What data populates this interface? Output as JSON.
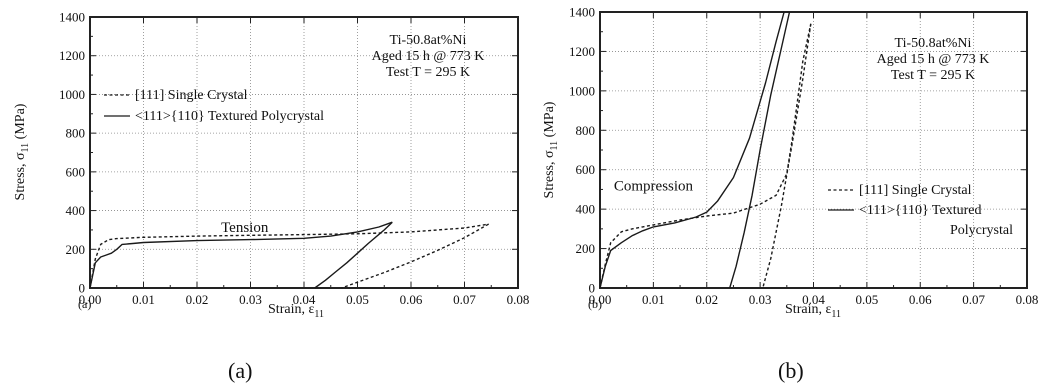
{
  "chart_data": [
    {
      "type": "line",
      "panel_tag": "(a)",
      "caption": "(a)",
      "xlabel_main": "Strain, ε",
      "xlabel_sub": "11",
      "ylabel_main": "Stress, σ",
      "ylabel_sub": "11",
      "ylabel_unit": " (MPa)",
      "xlim": [
        0,
        0.08
      ],
      "ylim": [
        0,
        1400
      ],
      "xticks": [
        "0.00",
        "0.01",
        "0.02",
        "0.03",
        "0.04",
        "0.05",
        "0.06",
        "0.07",
        "0.08"
      ],
      "yticks": [
        "0",
        "200",
        "400",
        "600",
        "800",
        "1000",
        "1200",
        "1400"
      ],
      "grid": true,
      "info_lines": [
        "Ti-50.8at%Ni",
        "Aged 15 h @ 773 K",
        "Test T = 295 K"
      ],
      "annotation": {
        "text": "Tension",
        "x": 0.0245,
        "y": 290
      },
      "legend": [
        {
          "label": "[111] Single Crystal",
          "dash": "dashed"
        },
        {
          "label": "<111>{110} Textured Polycrystal",
          "dash": "solid"
        }
      ],
      "series": [
        {
          "dash": "dashed",
          "x": [
            0,
            0.001,
            0.002,
            0.0035,
            0.005,
            0.01,
            0.02,
            0.03,
            0.04,
            0.05,
            0.06,
            0.07,
            0.0745
          ],
          "y": [
            0,
            150,
            225,
            250,
            255,
            262,
            268,
            272,
            276,
            280,
            290,
            310,
            330
          ]
        },
        {
          "dash": "dashed",
          "x": [
            0.0745,
            0.07,
            0.065,
            0.06,
            0.055,
            0.05,
            0.047
          ],
          "y": [
            330,
            260,
            195,
            135,
            80,
            30,
            0
          ]
        },
        {
          "dash": "solid",
          "x": [
            0,
            0.001,
            0.002,
            0.003,
            0.004,
            0.005,
            0.006,
            0.008,
            0.01,
            0.02,
            0.03,
            0.04,
            0.045,
            0.05,
            0.054,
            0.0565
          ],
          "y": [
            0,
            130,
            160,
            170,
            180,
            200,
            225,
            230,
            235,
            245,
            250,
            257,
            268,
            290,
            315,
            340
          ]
        },
        {
          "dash": "solid",
          "x": [
            0.0565,
            0.055,
            0.052,
            0.05,
            0.048,
            0.046,
            0.044,
            0.042
          ],
          "y": [
            340,
            300,
            230,
            180,
            130,
            85,
            40,
            0
          ]
        }
      ]
    },
    {
      "type": "line",
      "panel_tag": "(b)",
      "caption": "(b)",
      "xlabel_main": "Strain, ε",
      "xlabel_sub": "11",
      "ylabel_main": "Stress, σ",
      "ylabel_sub": "11",
      "ylabel_unit": " (MPa)",
      "xlim": [
        0,
        0.08
      ],
      "ylim": [
        0,
        1400
      ],
      "xticks": [
        "0.00",
        "0.01",
        "0.02",
        "0.03",
        "0.04",
        "0.05",
        "0.06",
        "0.07",
        "0.08"
      ],
      "yticks": [
        "0",
        "200",
        "400",
        "600",
        "800",
        "1000",
        "1200",
        "1400"
      ],
      "grid": true,
      "info_lines": [
        "Ti-50.8at%Ni",
        "Aged 15 h @ 773 K",
        "Test T = 295 K"
      ],
      "annotation": {
        "text": "Compression",
        "x": 0.0026,
        "y": 495
      },
      "legend": [
        {
          "label": "[111] Single Crystal",
          "dash": "dashed"
        },
        {
          "label": "<111>{110} Textured",
          "dash": "solid"
        },
        {
          "label": "Polycrystal",
          "dash": "none"
        }
      ],
      "series": [
        {
          "dash": "dashed",
          "x": [
            0,
            0.001,
            0.002,
            0.004,
            0.006,
            0.008,
            0.01,
            0.015,
            0.02,
            0.025,
            0.03,
            0.033,
            0.035,
            0.036,
            0.037,
            0.038,
            0.0395
          ],
          "y": [
            0,
            120,
            230,
            285,
            300,
            310,
            320,
            345,
            365,
            380,
            425,
            470,
            580,
            750,
            950,
            1150,
            1340
          ]
        },
        {
          "dash": "dashed",
          "x": [
            0.0395,
            0.038,
            0.036,
            0.034,
            0.032,
            0.0305
          ],
          "y": [
            1340,
            1060,
            730,
            420,
            150,
            0
          ]
        },
        {
          "dash": "solid",
          "x": [
            0,
            0.001,
            0.002,
            0.004,
            0.006,
            0.008,
            0.01,
            0.012,
            0.014,
            0.016,
            0.018,
            0.02,
            0.022,
            0.025,
            0.028,
            0.031,
            0.033,
            0.0345
          ],
          "y": [
            0,
            110,
            190,
            230,
            265,
            290,
            310,
            320,
            330,
            345,
            360,
            385,
            440,
            560,
            760,
            1040,
            1250,
            1400
          ]
        },
        {
          "dash": "solid",
          "x": [
            0.0355,
            0.034,
            0.032,
            0.03,
            0.0285,
            0.027,
            0.0255,
            0.0243
          ],
          "y": [
            1400,
            1220,
            980,
            700,
            470,
            280,
            110,
            0
          ]
        }
      ]
    }
  ]
}
